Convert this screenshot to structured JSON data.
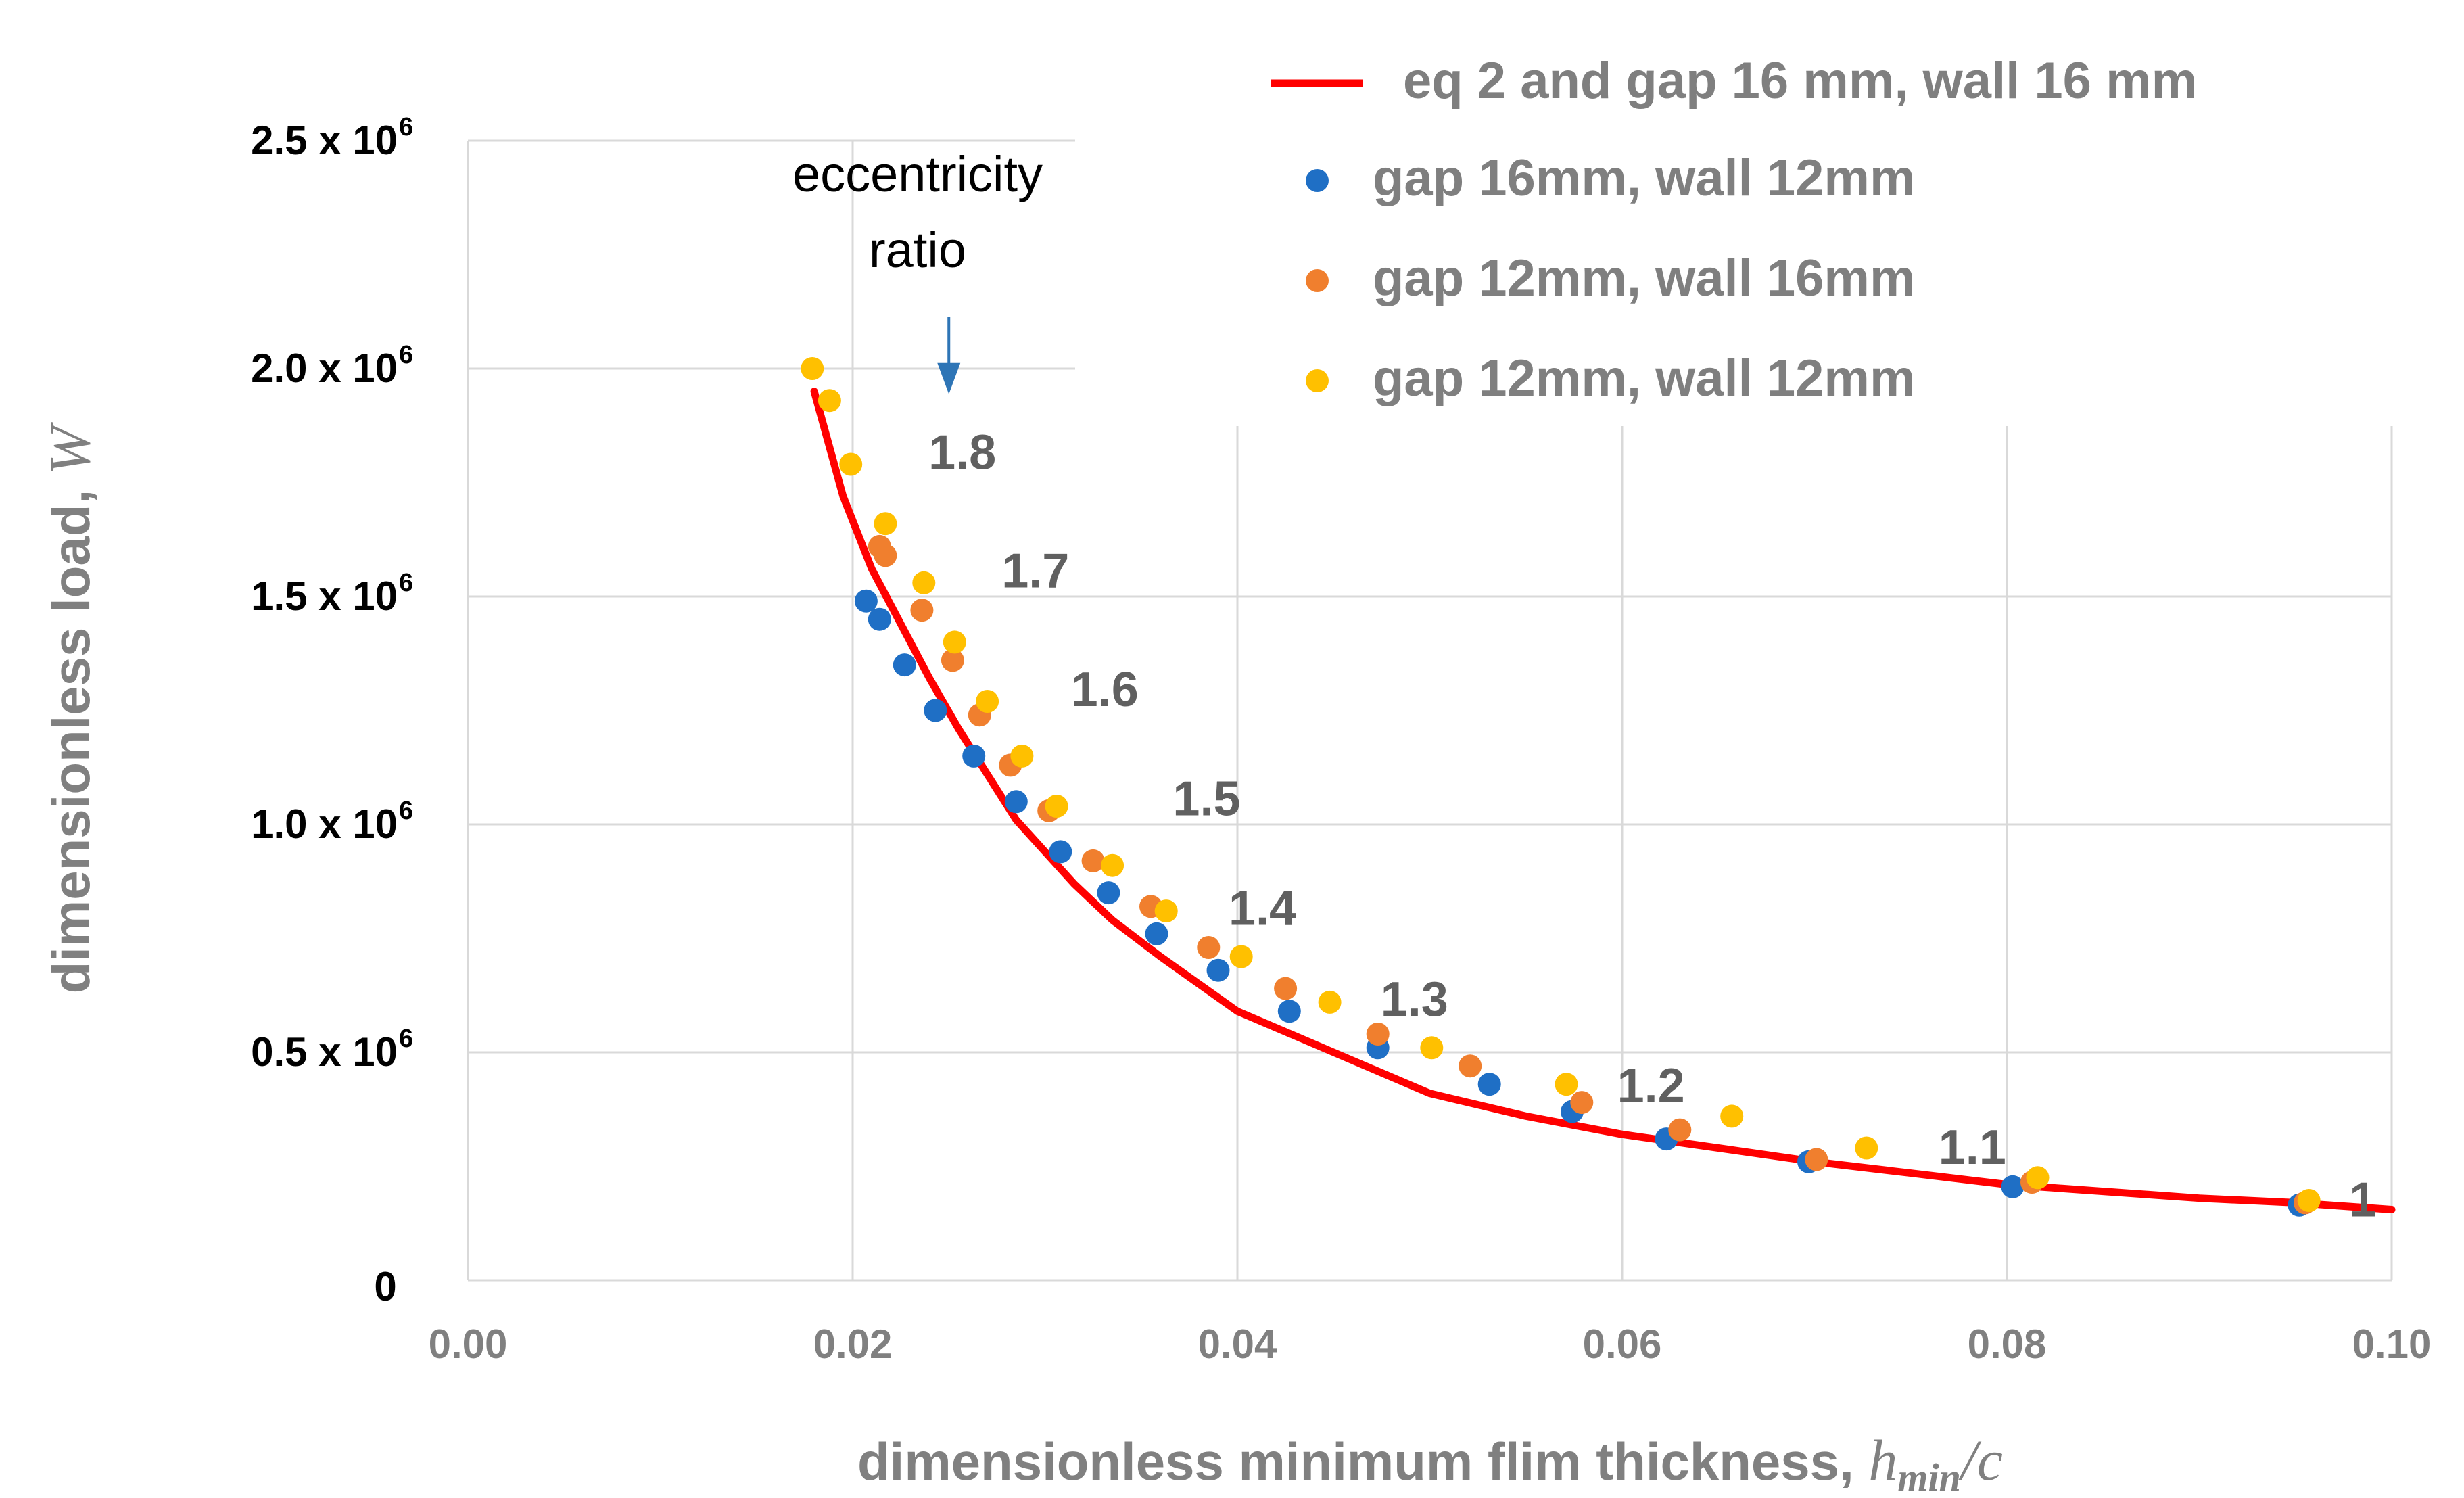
{
  "chart_data": {
    "type": "scatter",
    "xlabel": "dimensionless minimum flim thickness,",
    "xlabel_variable": "h",
    "xlabel_subscript": "min",
    "xlabel_suffix": "/c",
    "ylabel": "dimensionless load,",
    "ylabel_variable": "W",
    "xlim": [
      0,
      0.1
    ],
    "ylim": [
      0,
      2500000
    ],
    "grid": true,
    "x_ticks": [
      {
        "value": 0.0,
        "label": "0.00"
      },
      {
        "value": 0.02,
        "label": "0.02"
      },
      {
        "value": 0.04,
        "label": "0.04"
      },
      {
        "value": 0.06,
        "label": "0.06"
      },
      {
        "value": 0.08,
        "label": "0.08"
      },
      {
        "value": 0.1,
        "label": "0.10"
      }
    ],
    "y_ticks": [
      {
        "value": 0,
        "label": "0",
        "exp": ""
      },
      {
        "value": 500000,
        "label": "0.5 x 10",
        "exp": "6"
      },
      {
        "value": 1000000,
        "label": "1.0 x 10",
        "exp": "6"
      },
      {
        "value": 1500000,
        "label": "1.5 x 10",
        "exp": "6"
      },
      {
        "value": 2000000,
        "label": "2.0 x 10",
        "exp": "6"
      },
      {
        "value": 2500000,
        "label": "2.5 x 10",
        "exp": "6"
      }
    ],
    "legend_position": "top-right",
    "series": [
      {
        "name": "eq 2 and gap 16 mm, wall 16 mm",
        "kind": "line",
        "color": "#FF0000",
        "x": [
          0.018,
          0.0195,
          0.021,
          0.0225,
          0.024,
          0.0255,
          0.027,
          0.0285,
          0.03,
          0.0315,
          0.0335,
          0.036,
          0.04,
          0.045,
          0.05,
          0.055,
          0.06,
          0.065,
          0.07,
          0.075,
          0.08,
          0.085,
          0.09,
          0.095,
          0.1
        ],
        "y": [
          1950000,
          1720000,
          1560000,
          1440000,
          1320000,
          1210000,
          1110000,
          1010000,
          940000,
          870000,
          790000,
          710000,
          590000,
          500000,
          410000,
          360000,
          320000,
          290000,
          260000,
          235000,
          210000,
          195000,
          180000,
          170000,
          155000
        ]
      },
      {
        "name": "gap 16mm, wall 12mm",
        "kind": "scatter",
        "color": "#1F6FC5",
        "x": [
          0.0207,
          0.0214,
          0.0227,
          0.0243,
          0.0263,
          0.0285,
          0.0308,
          0.0333,
          0.0358,
          0.039,
          0.0427,
          0.0473,
          0.0531,
          0.0574,
          0.0623,
          0.0697,
          0.0803,
          0.0952
        ],
        "y": [
          1490000,
          1450000,
          1350000,
          1250000,
          1150000,
          1050000,
          940000,
          850000,
          760000,
          680000,
          590000,
          510000,
          430000,
          370000,
          310000,
          260000,
          205000,
          165000
        ]
      },
      {
        "name": "gap 12mm, wall 16mm",
        "kind": "scatter",
        "color": "#F07F2E",
        "x": [
          0.0214,
          0.0217,
          0.0236,
          0.0252,
          0.0266,
          0.0282,
          0.0302,
          0.0325,
          0.0355,
          0.0385,
          0.0425,
          0.0473,
          0.0521,
          0.0579,
          0.063,
          0.0701,
          0.0813,
          0.0955
        ],
        "y": [
          1610000,
          1590000,
          1470000,
          1360000,
          1240000,
          1130000,
          1030000,
          920000,
          820000,
          730000,
          640000,
          540000,
          470000,
          390000,
          330000,
          265000,
          215000,
          170000
        ]
      },
      {
        "name": "gap 12mm, wall 12mm",
        "kind": "scatter",
        "color": "#FFC000",
        "x": [
          0.0179,
          0.0188,
          0.0199,
          0.0217,
          0.0237,
          0.0253,
          0.027,
          0.0288,
          0.0306,
          0.0335,
          0.0363,
          0.0402,
          0.0448,
          0.0501,
          0.0571,
          0.0657,
          0.0727,
          0.0816,
          0.0957
        ],
        "y": [
          2000000,
          1930000,
          1790000,
          1660000,
          1530000,
          1400000,
          1270000,
          1150000,
          1040000,
          910000,
          810000,
          710000,
          610000,
          510000,
          430000,
          360000,
          290000,
          225000,
          175000
        ]
      }
    ],
    "annotations": {
      "eccentricity_title_line1": "eccentricity",
      "eccentricity_title_line2": "ratio",
      "eccentricity_arrow_at": {
        "x": 0.025,
        "y": 1950000
      },
      "ratio_labels": [
        {
          "text": "1.8",
          "x": 0.0257,
          "y": 1780000
        },
        {
          "text": "1.7",
          "x": 0.0295,
          "y": 1520000
        },
        {
          "text": "1.6",
          "x": 0.0331,
          "y": 1260000
        },
        {
          "text": "1.5",
          "x": 0.0384,
          "y": 1020000
        },
        {
          "text": "1.4",
          "x": 0.0413,
          "y": 780000
        },
        {
          "text": "1.3",
          "x": 0.0492,
          "y": 580000
        },
        {
          "text": "1.2",
          "x": 0.0615,
          "y": 390000
        },
        {
          "text": "1.1",
          "x": 0.0782,
          "y": 255000
        },
        {
          "text": "1",
          "x": 0.0985,
          "y": 140000
        }
      ]
    }
  }
}
